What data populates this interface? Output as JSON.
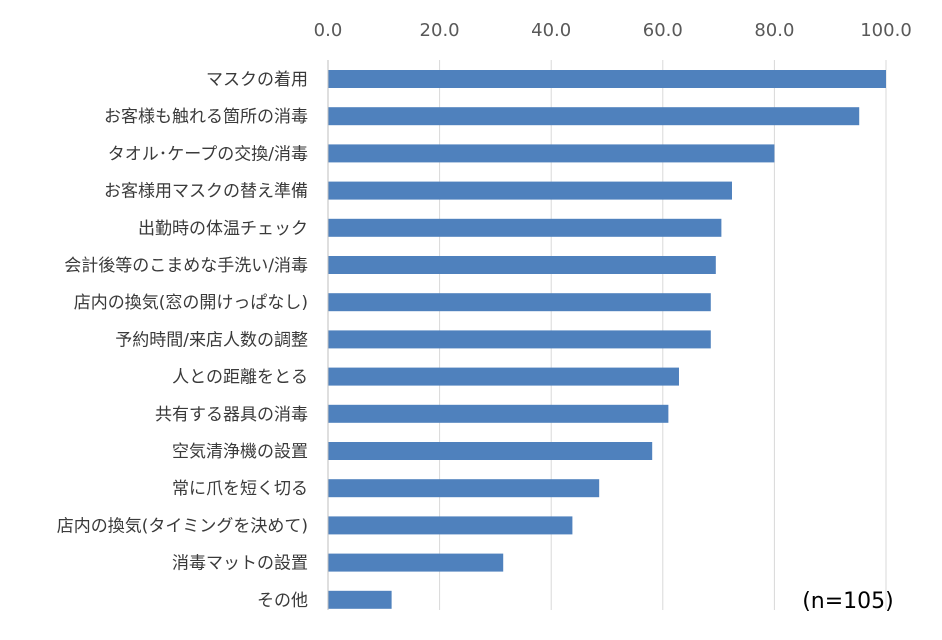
{
  "chart_data": {
    "type": "bar",
    "orientation": "horizontal",
    "categories": [
      "マスクの着用",
      "お客様も触れる箇所の消毒",
      "タオル･ケープの交換/消毒",
      "お客様用マスクの替え準備",
      "出勤時の体温チェック",
      "会計後等のこまめな手洗い/消毒",
      "店内の換気(窓の開けっぱなし)",
      "予約時間/来店人数の調整",
      "人との距離をとる",
      "共有する器具の消毒",
      "空気清浄機の設置",
      "常に爪を短く切る",
      "店内の換気(タイミングを決めて)",
      "消毒マットの設置",
      "その他"
    ],
    "values": [
      100.0,
      95.2,
      80.0,
      72.4,
      70.5,
      69.5,
      68.6,
      68.6,
      62.9,
      61.0,
      58.1,
      48.6,
      43.8,
      31.4,
      11.4
    ],
    "xlim": [
      0,
      100
    ],
    "xticks": [
      "0.0",
      "20.0",
      "40.0",
      "60.0",
      "80.0",
      "100.0"
    ],
    "xtick_values": [
      0,
      20,
      40,
      60,
      80,
      100
    ],
    "x_axis_position": "top",
    "grid": true,
    "bar_color": "#4f81bd",
    "annotation": "(n=105)"
  }
}
